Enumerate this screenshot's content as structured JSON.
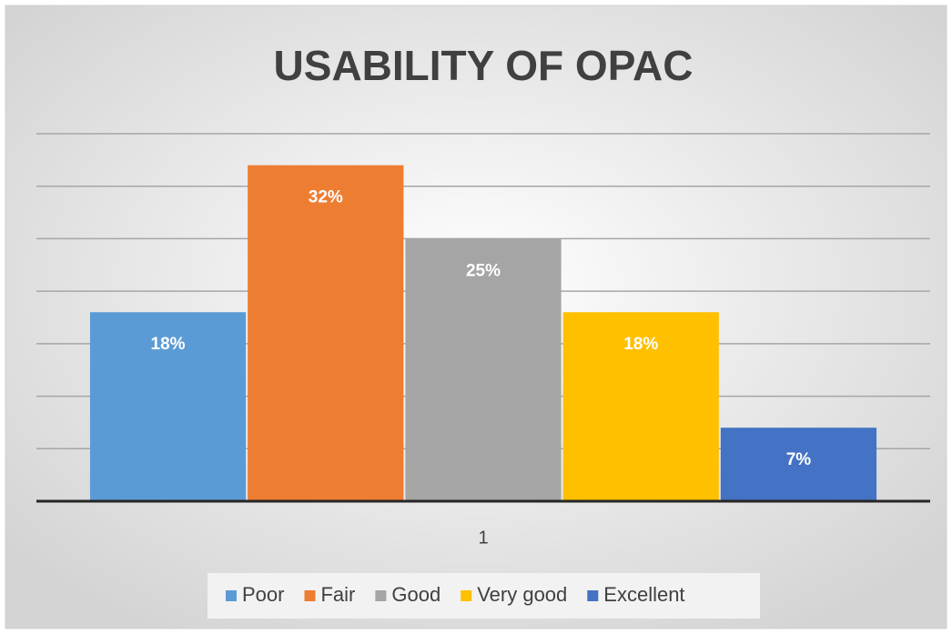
{
  "chart_data": {
    "type": "bar",
    "title": "USABILITY OF OPAC",
    "categories": [
      "1"
    ],
    "series": [
      {
        "name": "Poor",
        "color": "#5b9bd5",
        "values": [
          18
        ],
        "value_labels": [
          "18%"
        ]
      },
      {
        "name": "Fair",
        "color": "#ed7d31",
        "values": [
          32
        ],
        "value_labels": [
          "32%"
        ]
      },
      {
        "name": "Good",
        "color": "#a5a5a5",
        "values": [
          25
        ],
        "value_labels": [
          "25%"
        ]
      },
      {
        "name": "Very good",
        "color": "#ffc000",
        "values": [
          18
        ],
        "value_labels": [
          "18%"
        ]
      },
      {
        "name": "Excellent",
        "color": "#4472c4",
        "values": [
          7
        ],
        "value_labels": [
          "7%"
        ]
      }
    ],
    "ylim": [
      0,
      35
    ],
    "yticks": [
      0,
      5,
      10,
      15,
      20,
      25,
      30,
      35
    ],
    "grid": true,
    "legend": "bottom"
  }
}
